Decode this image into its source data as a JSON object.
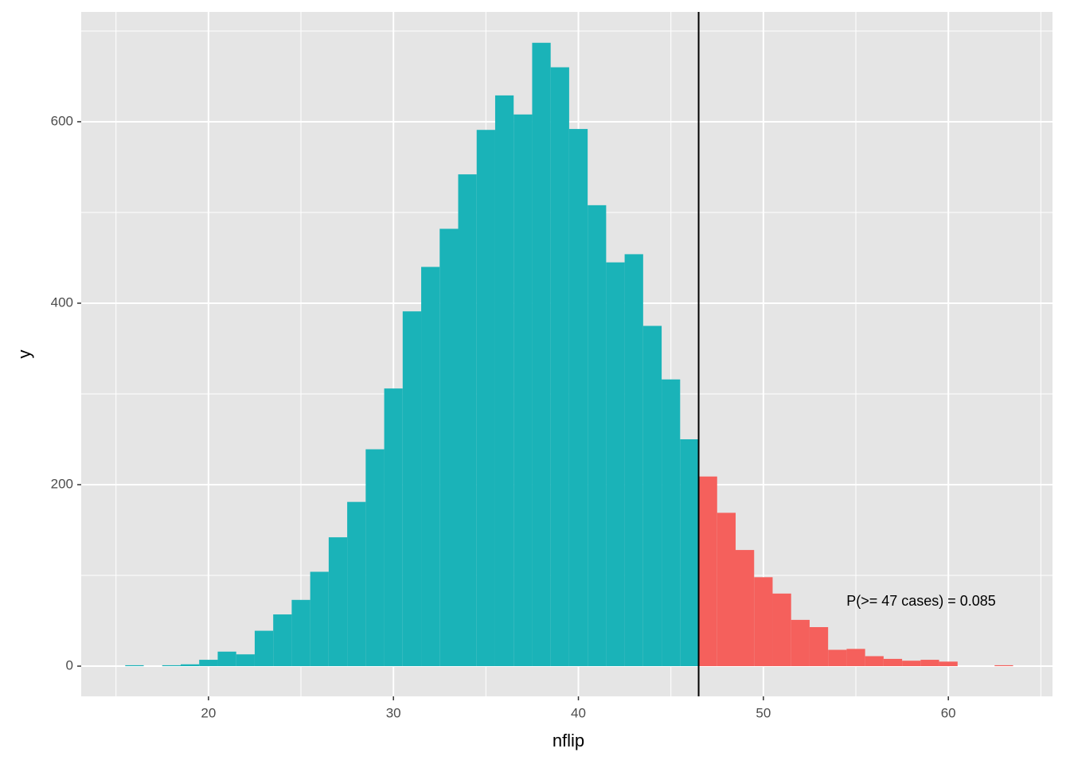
{
  "chart_data": {
    "type": "histogram",
    "bins": [
      15.5,
      16.5,
      17.5,
      18.5,
      19.5,
      20.5,
      21.5,
      22.5,
      23.5,
      24.5,
      25.5,
      26.5,
      27.5,
      28.5,
      29.5,
      30.5,
      31.5,
      32.5,
      33.5,
      34.5,
      35.5,
      36.5,
      37.5,
      38.5,
      39.5,
      40.5,
      41.5,
      42.5,
      43.5,
      44.5,
      45.5,
      46.5,
      47.5,
      48.5,
      49.5,
      50.5,
      51.5,
      52.5,
      53.5,
      54.5,
      55.5,
      56.5,
      57.5,
      58.5,
      59.5,
      60.5,
      61.5,
      62.5,
      63.5
    ],
    "values": [
      1,
      0,
      1,
      2,
      7,
      16,
      13,
      39,
      57,
      73,
      104,
      142,
      181,
      239,
      306,
      391,
      440,
      482,
      542,
      591,
      629,
      608,
      687,
      660,
      592,
      508,
      445,
      454,
      375,
      316,
      250,
      209,
      169,
      128,
      98,
      80,
      51,
      43,
      18,
      19,
      11,
      8,
      6,
      7,
      5,
      0,
      0,
      1
    ],
    "colors": [
      "#1ab3b8",
      "#f5605c"
    ],
    "vline": 46.5,
    "annotation": "P(>= 47 cases) = 0.085",
    "x_label": "nflip",
    "y_label": "y",
    "xlim": [
      13.12,
      65.63
    ],
    "ylim": [
      -33.3,
      721
    ],
    "xticks": [
      20,
      30,
      40,
      50,
      60
    ],
    "yticks": [
      0,
      200,
      400,
      600
    ],
    "grid": true
  }
}
